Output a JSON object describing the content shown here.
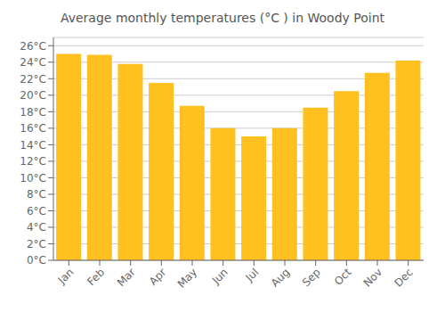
{
  "chart_data": {
    "type": "bar",
    "title": "Average monthly temperatures (°C ) in Woody Point",
    "categories": [
      "Jan",
      "Feb",
      "Mar",
      "Apr",
      "May",
      "Jun",
      "Jul",
      "Aug",
      "Sep",
      "Oct",
      "Nov",
      "Dec"
    ],
    "values": [
      25.0,
      24.9,
      23.8,
      21.5,
      18.7,
      16.0,
      15.0,
      16.0,
      18.5,
      20.5,
      22.7,
      24.2
    ],
    "color": "#FFC020",
    "ylim": [
      0,
      27
    ],
    "yticks": [
      {
        "value": 0,
        "label": "0°C"
      },
      {
        "value": 2,
        "label": "2°C"
      },
      {
        "value": 4,
        "label": "4°C"
      },
      {
        "value": 6,
        "label": "6°C"
      },
      {
        "value": 8,
        "label": "8°C"
      },
      {
        "value": 10,
        "label": "10°C"
      },
      {
        "value": 12,
        "label": "12°C"
      },
      {
        "value": 14,
        "label": "14°C"
      },
      {
        "value": 16,
        "label": "16°C"
      },
      {
        "value": 18,
        "label": "18°C"
      },
      {
        "value": 20,
        "label": "20°C"
      },
      {
        "value": 22,
        "label": "22°C"
      },
      {
        "value": 24,
        "label": "24°C"
      },
      {
        "value": 26,
        "label": "26°C"
      }
    ],
    "grid": true
  }
}
